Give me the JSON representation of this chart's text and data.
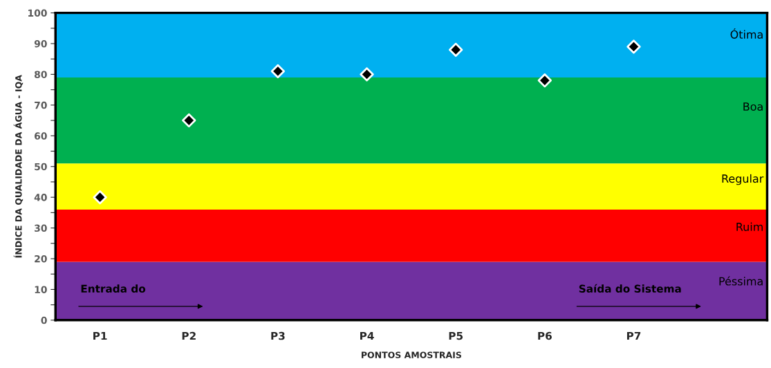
{
  "chart_data": {
    "type": "scatter",
    "xlabel": "PONTOS AMOSTRAIS",
    "ylabel": "ÍNDICE DA QUALIDADE DA ÁGUA - IQA",
    "categories": [
      "P1",
      "P2",
      "P3",
      "P4",
      "P5",
      "P6",
      "P7",
      null
    ],
    "series": [
      {
        "color": "#000000",
        "values": [
          40,
          65,
          81,
          80,
          88,
          78,
          89,
          null
        ]
      }
    ],
    "marker": "diamond",
    "grid": false,
    "legend": false,
    "ylim": [
      0,
      100
    ],
    "yticks": [
      0,
      {
        "value": 5,
        "label": null
      },
      10,
      {
        "value": 15,
        "label": null
      },
      20,
      {
        "value": 25,
        "label": null
      },
      30,
      {
        "value": 35,
        "label": null
      },
      40,
      {
        "value": 45,
        "label": null
      },
      50,
      {
        "value": 55,
        "label": null
      },
      60,
      {
        "value": 65,
        "label": null
      },
      70,
      {
        "value": 75,
        "label": null
      },
      80,
      {
        "value": 85,
        "label": null
      },
      90,
      {
        "value": 95,
        "label": null
      },
      100
    ],
    "bands": [
      {
        "axis": "y",
        "from": 0,
        "to": 19,
        "label": "Péssima",
        "color": "#7030a0"
      },
      {
        "axis": "y",
        "from": 19,
        "to": 36,
        "label": "Ruim",
        "color": "#ff0000"
      },
      {
        "axis": "y",
        "from": 36,
        "to": 51,
        "label": "Regular",
        "color": "#ffff00"
      },
      {
        "axis": "y",
        "from": 51,
        "to": 79,
        "label": "Boa",
        "color": "#00b050"
      },
      {
        "axis": "y",
        "from": 79,
        "to": 100,
        "label": "Ótima",
        "color": "#00b0f0"
      }
    ],
    "annotations": [
      "Entrada do",
      "Saída do Sistema"
    ]
  }
}
